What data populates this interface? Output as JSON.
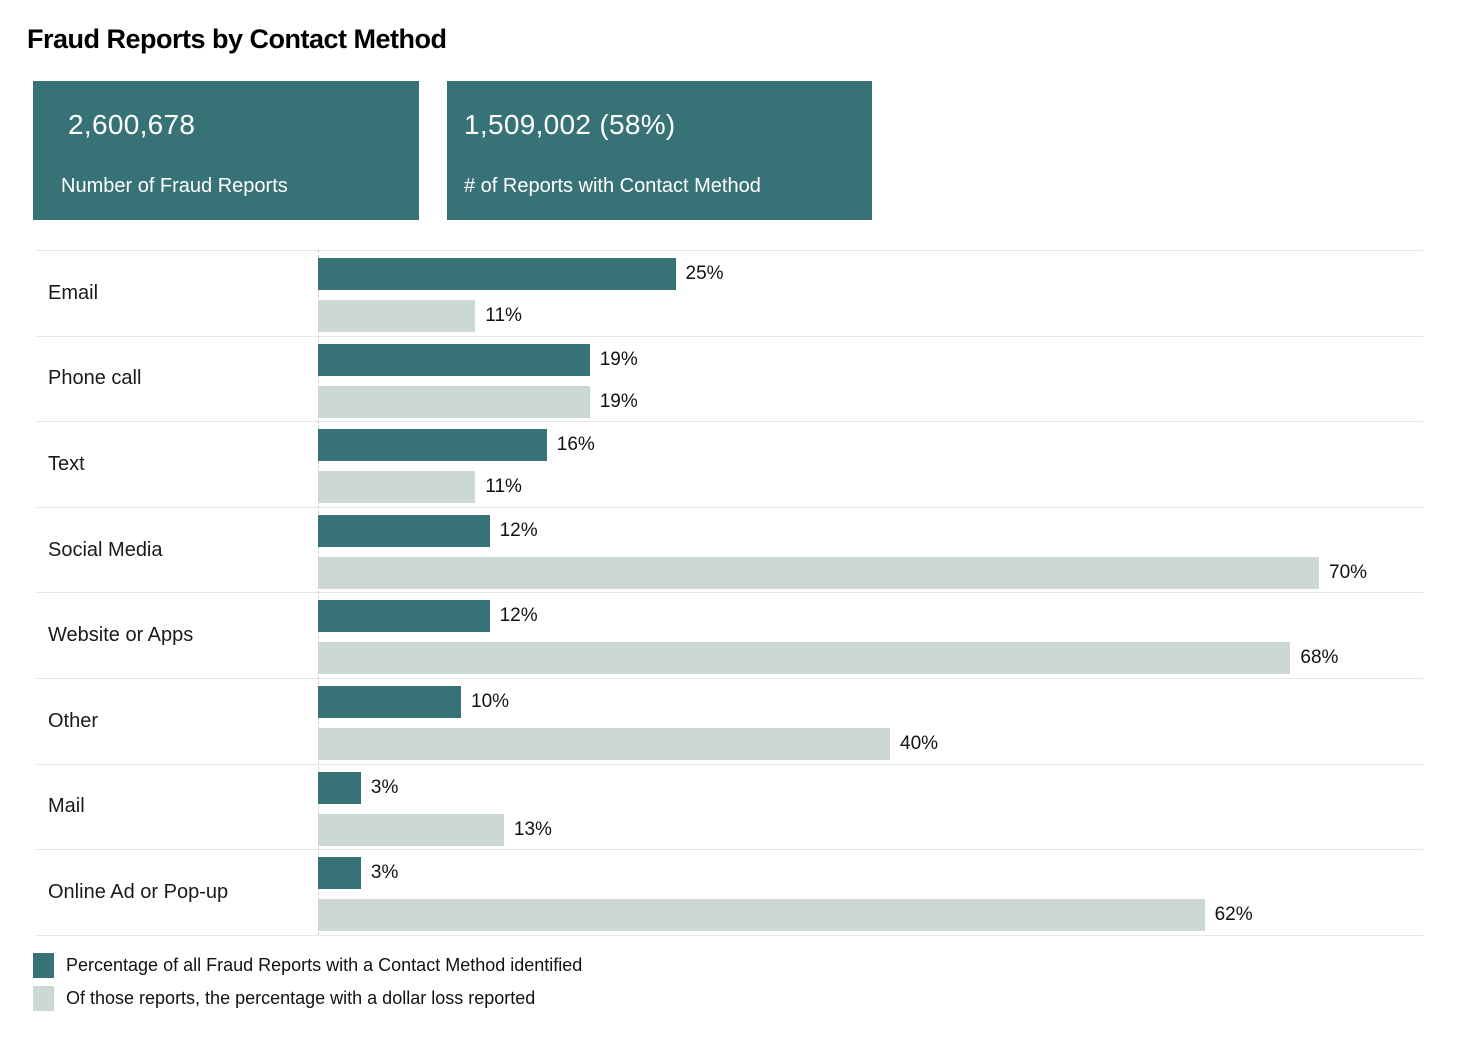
{
  "title": "Fraud Reports by Contact Method",
  "stat_boxes": [
    {
      "value": "2,600,678",
      "label": "Number of Fraud Reports"
    },
    {
      "value": "1,509,002 (58%)",
      "label": "# of Reports with Contact Method"
    }
  ],
  "colors": {
    "accent_teal": "#377276",
    "light_teal": "#cbd8d4",
    "divider": "#e8e7e5",
    "baseline_dashed": "#cfcfcf",
    "stat_box_text": "#ffffff",
    "text": "#111111"
  },
  "chart_data": {
    "type": "bar",
    "orientation": "horizontal",
    "title": "Fraud Reports by Contact Method",
    "xlabel": "",
    "ylabel": "",
    "grid": "row-dividers",
    "legend_position": "bottom-left",
    "value_suffix": "%",
    "xlim": [
      0,
      77
    ],
    "categories": [
      "Email",
      "Phone call",
      "Text",
      "Social Media",
      "Website or Apps",
      "Other",
      "Mail",
      "Online Ad or Pop-up"
    ],
    "series": [
      {
        "name": "Percentage of all Fraud Reports with a Contact Method identified",
        "color": "#377276",
        "values": [
          25,
          19,
          16,
          12,
          12,
          10,
          3,
          3
        ]
      },
      {
        "name": "Of those reports, the percentage with a dollar loss reported",
        "color": "#cbd8d4",
        "values": [
          11,
          19,
          11,
          70,
          68,
          40,
          13,
          62
        ]
      }
    ]
  }
}
